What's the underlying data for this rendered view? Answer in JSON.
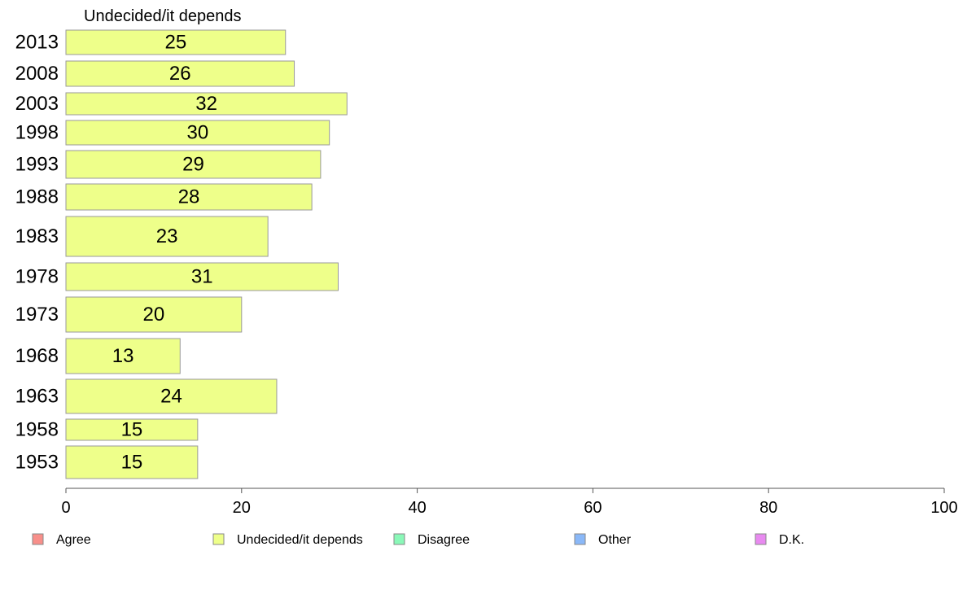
{
  "chart_data": {
    "type": "bar",
    "orientation": "horizontal",
    "title": "Undecided/it depends",
    "categories": [
      "2013",
      "2008",
      "2003",
      "1998",
      "1993",
      "1988",
      "1983",
      "1978",
      "1973",
      "1968",
      "1963",
      "1958",
      "1953"
    ],
    "values": [
      25,
      26,
      32,
      30,
      29,
      28,
      23,
      31,
      20,
      13,
      24,
      15,
      15
    ],
    "xlim": [
      0,
      100
    ],
    "xticks": [
      0,
      20,
      40,
      60,
      80,
      100
    ],
    "grid": false,
    "legend_position": "bottom",
    "legend": [
      {
        "label": "Agree",
        "color": "#f88f8a"
      },
      {
        "label": "Undecided/it depends",
        "color": "#eeff8a"
      },
      {
        "label": "Disagree",
        "color": "#8af8b8"
      },
      {
        "label": "Other",
        "color": "#8ab8f8"
      },
      {
        "label": "D.K.",
        "color": "#e88af0"
      }
    ],
    "bar_color": "#eeff8a"
  }
}
